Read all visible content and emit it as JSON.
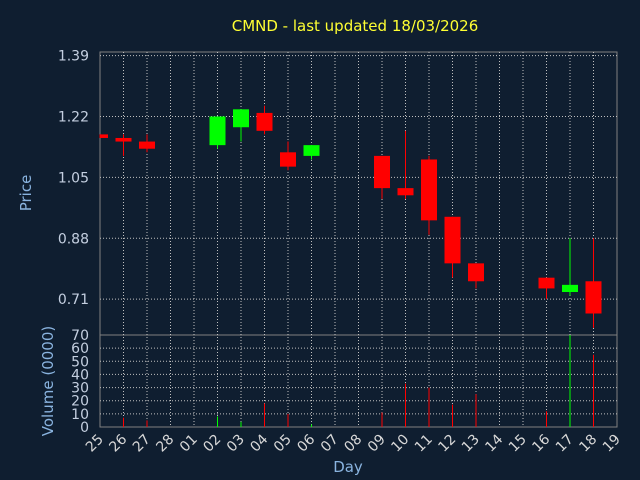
{
  "chart_data": {
    "type": "candlestick",
    "title": "CMND - last updated 18/03/2026",
    "xlabel": "Day",
    "price_axis": {
      "label": "Price",
      "ylim": [
        0.61,
        1.4
      ],
      "ticks": [
        "1.39",
        "1.22",
        "1.05",
        "0.88",
        "0.71"
      ]
    },
    "volume_axis": {
      "label": "Volume (0000)",
      "ylim": [
        0,
        70
      ],
      "ticks": [
        "0",
        "10",
        "20",
        "30",
        "40",
        "50",
        "60",
        "70"
      ]
    },
    "x_tick_labels": [
      "25",
      "26",
      "27",
      "28",
      "01",
      "02",
      "03",
      "04",
      "05",
      "06",
      "07",
      "08",
      "09",
      "10",
      "11",
      "12",
      "13",
      "14",
      "15",
      "16",
      "17",
      "18",
      "19"
    ],
    "grid": true,
    "colors": {
      "up": "#00ff00",
      "down": "#ff0000",
      "title": "#ffff33",
      "background": "#0f1e30",
      "axis_label": "#8ab4e0"
    },
    "candles": [
      {
        "day": "25",
        "open": 1.17,
        "high": 1.17,
        "low": 1.16,
        "close": 1.16
      },
      {
        "day": "26",
        "open": 1.16,
        "high": 1.17,
        "low": 1.11,
        "close": 1.15
      },
      {
        "day": "27",
        "open": 1.15,
        "high": 1.17,
        "low": 1.12,
        "close": 1.13
      },
      {
        "day": "02",
        "open": 1.14,
        "high": 1.22,
        "low": 1.13,
        "close": 1.22
      },
      {
        "day": "03",
        "open": 1.19,
        "high": 1.24,
        "low": 1.15,
        "close": 1.24
      },
      {
        "day": "04",
        "open": 1.23,
        "high": 1.25,
        "low": 1.17,
        "close": 1.18
      },
      {
        "day": "05",
        "open": 1.12,
        "high": 1.15,
        "low": 1.07,
        "close": 1.08
      },
      {
        "day": "06",
        "open": 1.11,
        "high": 1.14,
        "low": 1.1,
        "close": 1.14
      },
      {
        "day": "09",
        "open": 1.11,
        "high": 1.11,
        "low": 0.99,
        "close": 1.02
      },
      {
        "day": "10",
        "open": 1.02,
        "high": 1.18,
        "low": 0.99,
        "close": 1.0
      },
      {
        "day": "11",
        "open": 1.1,
        "high": 1.11,
        "low": 0.89,
        "close": 0.93
      },
      {
        "day": "12",
        "open": 0.94,
        "high": 0.94,
        "low": 0.77,
        "close": 0.81
      },
      {
        "day": "13",
        "open": 0.81,
        "high": 0.81,
        "low": 0.74,
        "close": 0.76
      },
      {
        "day": "16",
        "open": 0.77,
        "high": 0.77,
        "low": 0.71,
        "close": 0.74
      },
      {
        "day": "17",
        "open": 0.73,
        "high": 0.88,
        "low": 0.72,
        "close": 0.75
      },
      {
        "day": "18",
        "open": 0.76,
        "high": 0.88,
        "low": 0.63,
        "close": 0.67
      }
    ],
    "volume": [
      {
        "day": "26",
        "value": 7
      },
      {
        "day": "27",
        "value": 5
      },
      {
        "day": "02",
        "value": 8
      },
      {
        "day": "03",
        "value": 4
      },
      {
        "day": "04",
        "value": 18
      },
      {
        "day": "05",
        "value": 10
      },
      {
        "day": "06",
        "value": 2
      },
      {
        "day": "09",
        "value": 11
      },
      {
        "day": "10",
        "value": 33
      },
      {
        "day": "11",
        "value": 30
      },
      {
        "day": "12",
        "value": 17
      },
      {
        "day": "13",
        "value": 25
      },
      {
        "day": "16",
        "value": 12
      },
      {
        "day": "17",
        "value": 70
      },
      {
        "day": "18",
        "value": 55
      }
    ]
  }
}
